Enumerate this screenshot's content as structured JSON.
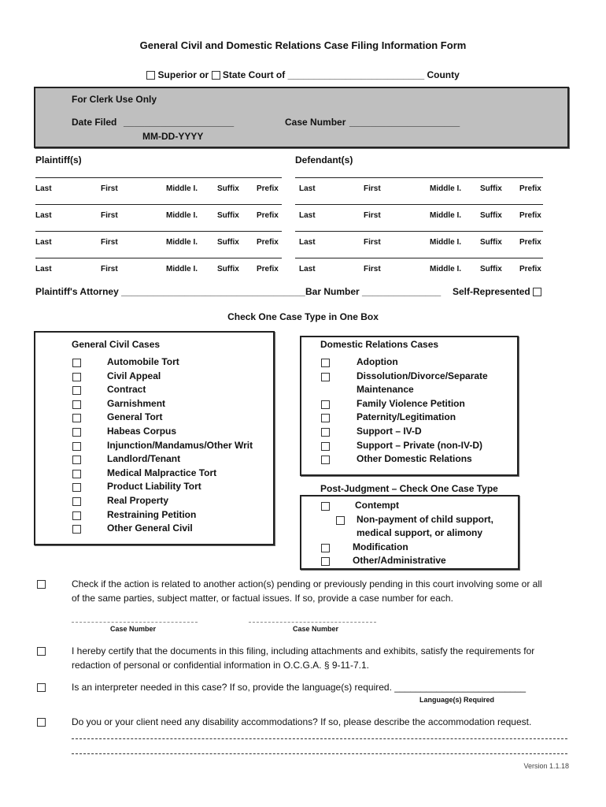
{
  "header": {
    "title": "General Civil and Domestic Relations Case Filing Information Form",
    "superior_label": "Superior or",
    "state_court_label": "State Court of",
    "county_blank": "__________________________",
    "county_label": "County"
  },
  "clerk": {
    "heading": "For Clerk Use Only",
    "date_filed_label": "Date Filed",
    "date_filed_blank": "_____________________",
    "date_format": "MM-DD-YYYY",
    "case_number_label": "Case Number",
    "case_number_blank": "_____________________"
  },
  "parties": {
    "plaintiff_heading": "Plaintiff(s)",
    "defendant_heading": "Defendant(s)",
    "columns": [
      "Last",
      "First",
      "Middle I.",
      "Suffix",
      "Prefix"
    ]
  },
  "attorney": {
    "label": "Plaintiff's Attorney",
    "blank": "___________________________________",
    "bar_label": "Bar Number",
    "bar_blank": "_______________",
    "self_label": "Self-Represented"
  },
  "case_type_heading": "Check One Case Type in One Box",
  "general_civil": {
    "heading": "General Civil Cases",
    "items": [
      "Automobile Tort",
      "Civil Appeal",
      "Contract",
      "Garnishment",
      "General Tort",
      "Habeas Corpus",
      "Injunction/Mandamus/Other Writ",
      "Landlord/Tenant",
      "Medical Malpractice Tort",
      "Product Liability Tort",
      "Real Property",
      "Restraining Petition",
      "Other General Civil"
    ]
  },
  "domestic": {
    "heading": "Domestic Relations Cases",
    "items": [
      "Adoption",
      "Dissolution/Divorce/Separate",
      "Maintenance",
      "Family Violence Petition",
      "Paternity/Legitimation",
      "Support – IV-D",
      "Support – Private (non-IV-D)",
      "Other Domestic Relations"
    ]
  },
  "post_judgment": {
    "heading": "Post-Judgment – Check One Case Type",
    "items": [
      "Contempt",
      "Non-payment of child support,",
      "medical support, or alimony",
      "Modification",
      "Other/Administrative"
    ]
  },
  "questions": {
    "related_line1": "Check if the action is related to another action(s) pending or previously pending in this court involving some or all",
    "related_line2": "of the same parties, subject matter, or factual issues. If so, provide a case number for each.",
    "case_number_label": "Case Number",
    "certify_line1": "I hereby certify that the documents in this filing, including attachments and exhibits, satisfy the requirements for",
    "certify_line2": "redaction of personal or confidential information in O.C.G.A. § 9-11-7.1.",
    "interpreter": "Is an interpreter needed in this case? If so, provide the language(s) required. _________________________",
    "language_label": "Language(s) Required",
    "disability": "Do you or your client need any disability accommodations? If so, please describe the accommodation request."
  },
  "version": "Version 1.1.18"
}
